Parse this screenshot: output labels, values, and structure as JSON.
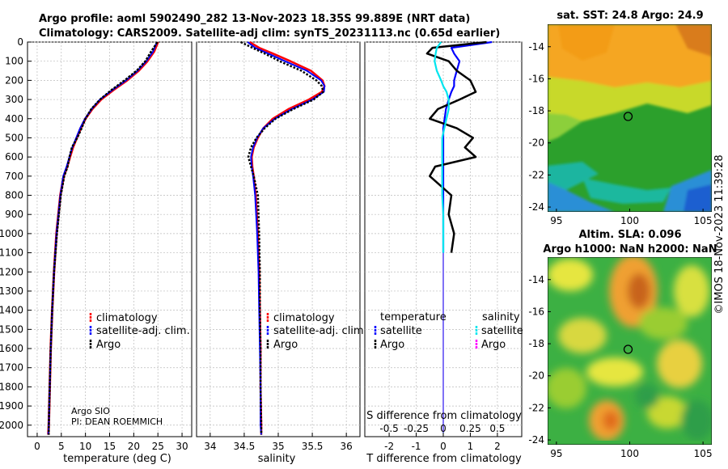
{
  "header": {
    "title_line1": "Argo profile: aoml 5902490_282 13-Nov-2023 18.35S 99.889E (NRT data)",
    "title_line2": "Climatology: CARS2009. Satellite-adj clim: synTS_20231113.nc (0.65d earlier)"
  },
  "side_label": "©IMOS 18-Nov-2023 11:39:28",
  "colors": {
    "climatology": "#ff0000",
    "satellite": "#0000ff",
    "argo": "#000000",
    "sal_satellite": "#00e5ee",
    "sal_argo": "#ff00ff"
  },
  "depth_axis": {
    "ticks": [
      "0",
      "100",
      "200",
      "300",
      "400",
      "500",
      "600",
      "700",
      "800",
      "900",
      "1000",
      "1100",
      "1200",
      "1300",
      "1400",
      "1500",
      "1600",
      "1700",
      "1800",
      "1900",
      "2000"
    ]
  },
  "chart_data": [
    {
      "type": "line",
      "name": "temperature_profile",
      "xlabel": "temperature (deg C)",
      "xlim": [
        -2,
        32
      ],
      "ylim": [
        2060,
        0
      ],
      "xticks": [
        "0",
        "5",
        "10",
        "15",
        "20",
        "25",
        "30"
      ],
      "legend": [
        "climatology",
        "satellite-adj. clim.",
        "Argo"
      ],
      "annotation_1": "Argo SIO",
      "annotation_2": "PI: DEAN ROEMMICH",
      "depth": [
        0,
        50,
        100,
        150,
        200,
        250,
        300,
        350,
        400,
        450,
        500,
        550,
        600,
        650,
        700,
        800,
        1000,
        1200,
        1400,
        1600,
        1800,
        2000,
        2050
      ],
      "series": [
        {
          "name": "climatology",
          "values": [
            25.0,
            24.2,
            22.8,
            21.0,
            18.6,
            15.8,
            13.2,
            11.4,
            10.0,
            9.0,
            8.2,
            7.4,
            6.8,
            6.2,
            5.5,
            4.8,
            4.0,
            3.5,
            3.1,
            2.8,
            2.6,
            2.4,
            2.3
          ]
        },
        {
          "name": "satellite-adj. clim.",
          "values": [
            24.8,
            24.0,
            22.6,
            20.8,
            18.4,
            15.6,
            13.0,
            11.3,
            9.9,
            8.9,
            8.1,
            7.3,
            6.7,
            6.1,
            5.4,
            4.8,
            4.0,
            3.5,
            3.1,
            2.8,
            2.6,
            2.4,
            2.3
          ]
        },
        {
          "name": "Argo",
          "values": [
            24.9,
            23.6,
            22.4,
            20.6,
            18.1,
            15.4,
            13.0,
            11.2,
            10.0,
            9.2,
            8.3,
            7.2,
            6.7,
            6.3,
            5.6,
            4.9,
            4.1,
            3.5,
            3.1,
            2.8,
            2.6,
            2.4,
            2.4
          ]
        }
      ]
    },
    {
      "type": "line",
      "name": "salinity_profile",
      "xlabel": "salinity",
      "xlim": [
        33.8,
        36.2
      ],
      "ylim": [
        2060,
        0
      ],
      "xticks": [
        "34",
        "34.5",
        "35",
        "35.5",
        "36"
      ],
      "legend": [
        "climatology",
        "satellite-adj. clim.",
        "Argo"
      ],
      "depth": [
        0,
        30,
        60,
        100,
        150,
        200,
        230,
        260,
        300,
        350,
        400,
        450,
        500,
        550,
        600,
        650,
        700,
        800,
        1000,
        1200,
        1400,
        1600,
        1800,
        2000,
        2050
      ],
      "series": [
        {
          "name": "climatology",
          "values": [
            34.58,
            34.72,
            34.92,
            35.18,
            35.48,
            35.65,
            35.68,
            35.64,
            35.45,
            35.15,
            34.92,
            34.78,
            34.7,
            34.64,
            34.61,
            34.62,
            34.64,
            34.67,
            34.7,
            34.72,
            34.73,
            34.74,
            34.74,
            34.75,
            34.75
          ]
        },
        {
          "name": "satellite-adj. clim.",
          "values": [
            34.55,
            34.66,
            34.85,
            35.1,
            35.42,
            35.63,
            35.68,
            35.67,
            35.5,
            35.2,
            34.95,
            34.78,
            34.69,
            34.63,
            34.6,
            34.61,
            34.63,
            34.66,
            34.69,
            34.71,
            34.72,
            34.73,
            34.74,
            34.74,
            34.75
          ]
        },
        {
          "name": "Argo",
          "values": [
            34.45,
            34.62,
            34.8,
            35.02,
            35.34,
            35.56,
            35.64,
            35.66,
            35.52,
            35.22,
            34.96,
            34.8,
            34.68,
            34.6,
            34.56,
            34.6,
            34.64,
            34.7,
            34.72,
            34.73,
            34.73,
            34.74,
            34.74,
            34.75,
            34.75
          ]
        }
      ]
    },
    {
      "type": "line",
      "name": "difference_profile",
      "xlabel": "T difference from climatology",
      "xlabel_top": "S difference from climatology",
      "xlim": [
        -2.9,
        2.9
      ],
      "ylim": [
        2060,
        0
      ],
      "xticks": [
        "-2",
        "-1",
        "0",
        "1",
        "2"
      ],
      "sticks": [
        "-0.5",
        "-0.25",
        "0",
        "0.25",
        "0.5"
      ],
      "legend_header_temperature": "temperature",
      "legend_header_salinity": "salinity",
      "legend_temperature": [
        "satellite",
        "Argo"
      ],
      "legend_salinity": [
        "satellite",
        "Argo"
      ],
      "depth": [
        0,
        30,
        60,
        100,
        150,
        200,
        230,
        260,
        300,
        350,
        400,
        450,
        500,
        550,
        600,
        650,
        700,
        800,
        900,
        1000,
        1100
      ],
      "series": [
        {
          "name": "T satellite",
          "values": [
            1.8,
            0.3,
            0.4,
            0.6,
            0.5,
            0.4,
            0.4,
            0.3,
            0.2,
            0.1,
            0.05,
            0.0,
            0.0,
            0.0,
            0.0,
            0.0,
            0.0,
            0.0,
            0.0,
            0.0,
            0.0
          ]
        },
        {
          "name": "T Argo",
          "values": [
            1.6,
            -0.4,
            -0.6,
            0.2,
            0.5,
            1.0,
            1.1,
            1.2,
            0.6,
            -0.2,
            -0.5,
            0.5,
            1.1,
            0.8,
            1.2,
            -0.3,
            -0.5,
            0.3,
            0.2,
            0.4,
            0.3
          ]
        },
        {
          "name": "S satellite",
          "values": [
            -0.02,
            -0.06,
            -0.07,
            -0.08,
            -0.06,
            -0.02,
            0.0,
            0.03,
            0.05,
            0.05,
            0.03,
            0.01,
            -0.01,
            -0.01,
            -0.01,
            -0.01,
            -0.01,
            -0.01,
            0.0,
            0.0,
            0.0
          ]
        }
      ]
    },
    {
      "type": "heatmap",
      "name": "sst_map",
      "title": "sat. SST: 24.8 Argo: 24.9",
      "xlim": [
        94.4,
        105.6
      ],
      "ylim": [
        -24.3,
        -12.6
      ],
      "xticks": [
        "95",
        "100",
        "105"
      ],
      "yticks": [
        "-14",
        "-16",
        "-18",
        "-20",
        "-22",
        "-24"
      ],
      "float_lon": 99.889,
      "float_lat": -18.35
    },
    {
      "type": "heatmap",
      "name": "sla_map",
      "title_line1": "Altim. SLA: 0.096",
      "title_line2": "Argo h1000: NaN h2000: NaN",
      "xlim": [
        94.4,
        105.6
      ],
      "ylim": [
        -24.3,
        -12.6
      ],
      "xticks": [
        "95",
        "100",
        "105"
      ],
      "yticks": [
        "-14",
        "-16",
        "-18",
        "-20",
        "-22",
        "-24"
      ],
      "float_lon": 99.889,
      "float_lat": -18.35
    }
  ]
}
